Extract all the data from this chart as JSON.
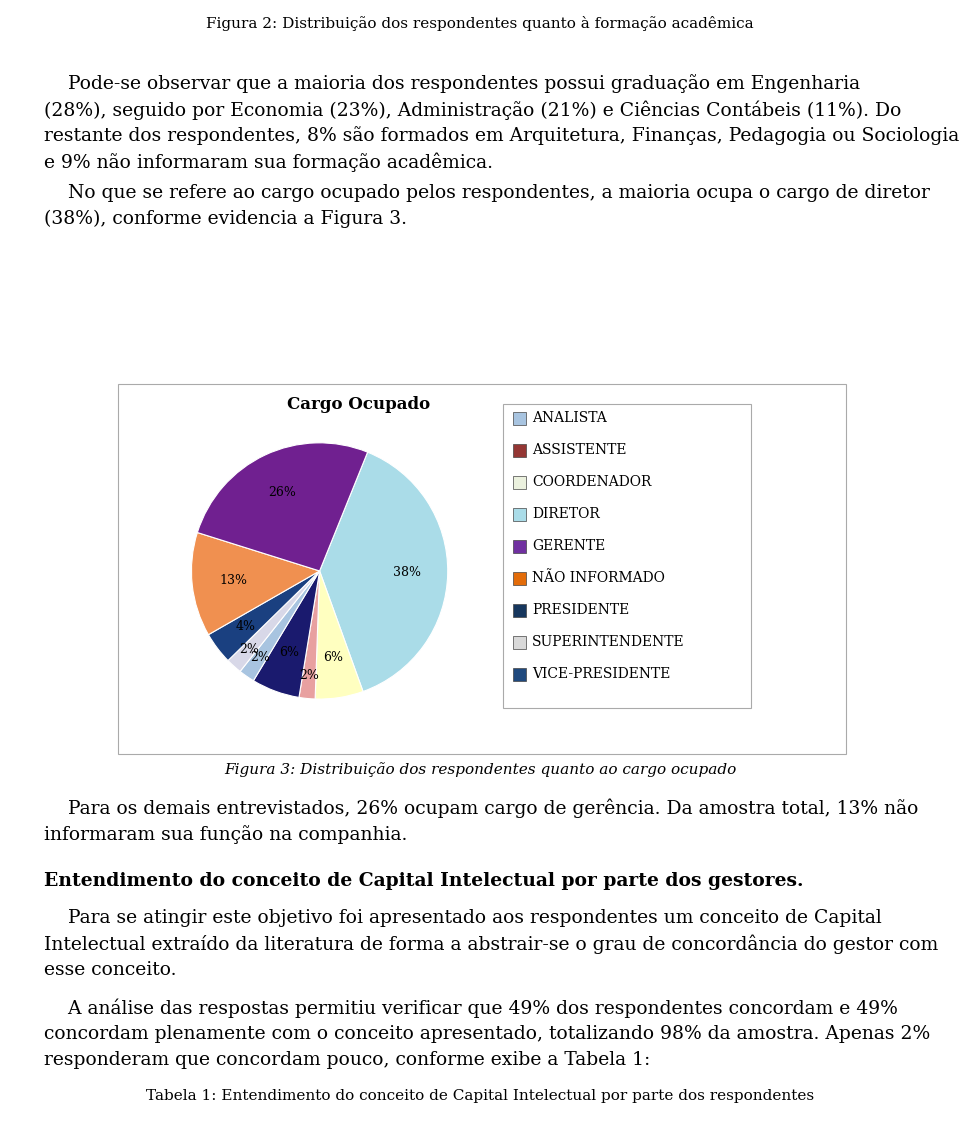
{
  "title_top": "Figura 2: Distribuição dos respondentes quanto à formação acadêmica",
  "chart_title": "Cargo Ocupado",
  "labels": [
    "ANALISTA",
    "ASSISTENTE",
    "COORDENADOR",
    "DIRETOR",
    "GERENTE",
    "NÃO INFORMADO",
    "PRESIDENTE",
    "SUPERINTENDENTE",
    "VICE-PRESIDENTE"
  ],
  "legend_colors": [
    "#b8cce4",
    "#943634",
    "#ebf1de",
    "#b8cce4",
    "#7030a0",
    "#e36c09",
    "#17375e",
    "#d9d9d9",
    "#1f497d"
  ],
  "pie_sizes": [
    38,
    6,
    2,
    6,
    2,
    2,
    4,
    13,
    26
  ],
  "pie_colors": [
    "#92d0e0",
    "#f2dcdb",
    "#c5d9f1",
    "#92d0e0",
    "#7030a0",
    "#e36c09",
    "#17375e",
    "#d9d9d9",
    "#1f497d"
  ],
  "pie_order_labels": [
    "DIRETOR",
    "COORDENADOR",
    "ASSISTENTE",
    "VICE-PRESIDENTE",
    "ANALISTA",
    "SUPERINTENDENTE",
    "PRESIDENTE",
    "NÃO INFORMADO",
    "GERENTE"
  ],
  "pie_pct": [
    "38%",
    "6%",
    "2%",
    "6%",
    "2%",
    "2%",
    "4%",
    "13%",
    "26%"
  ],
  "fig_caption": "Figura 3: Distribuição dos respondentes quanto ao cargo ocupado",
  "bg_color": "#ffffff",
  "text_color": "#000000"
}
